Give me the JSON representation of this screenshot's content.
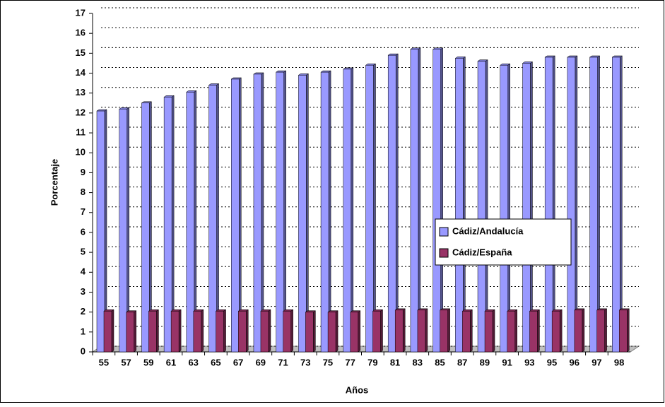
{
  "chart_data": {
    "type": "bar",
    "x_label": "Años",
    "y_label": "Porcentaje",
    "categories": [
      "55",
      "57",
      "59",
      "61",
      "63",
      "65",
      "67",
      "69",
      "71",
      "73",
      "75",
      "77",
      "79",
      "81",
      "83",
      "85",
      "87",
      "89",
      "91",
      "93",
      "95",
      "96",
      "97",
      "98"
    ],
    "series": [
      {
        "name": "Cádiz/Andalucía",
        "color": "#9999ff",
        "values": [
          12.1,
          12.2,
          12.5,
          12.8,
          13.05,
          13.4,
          13.7,
          13.95,
          14.05,
          13.9,
          14.05,
          14.2,
          14.4,
          14.9,
          15.2,
          15.2,
          14.75,
          14.6,
          14.4,
          14.5,
          14.8,
          14.8,
          14.8,
          14.8
        ]
      },
      {
        "name": "Cádiz/España",
        "color": "#993366",
        "values": [
          2.05,
          2.0,
          2.05,
          2.05,
          2.05,
          2.05,
          2.05,
          2.05,
          2.05,
          2.0,
          2.0,
          2.0,
          2.05,
          2.1,
          2.1,
          2.1,
          2.05,
          2.05,
          2.05,
          2.05,
          2.05,
          2.1,
          2.1,
          2.1
        ]
      }
    ],
    "ylim": [
      0,
      17
    ],
    "yticks": [
      0,
      1,
      2,
      3,
      4,
      5,
      6,
      7,
      8,
      9,
      10,
      11,
      12,
      13,
      14,
      15,
      16,
      17
    ],
    "grid": true,
    "legend": "right"
  }
}
